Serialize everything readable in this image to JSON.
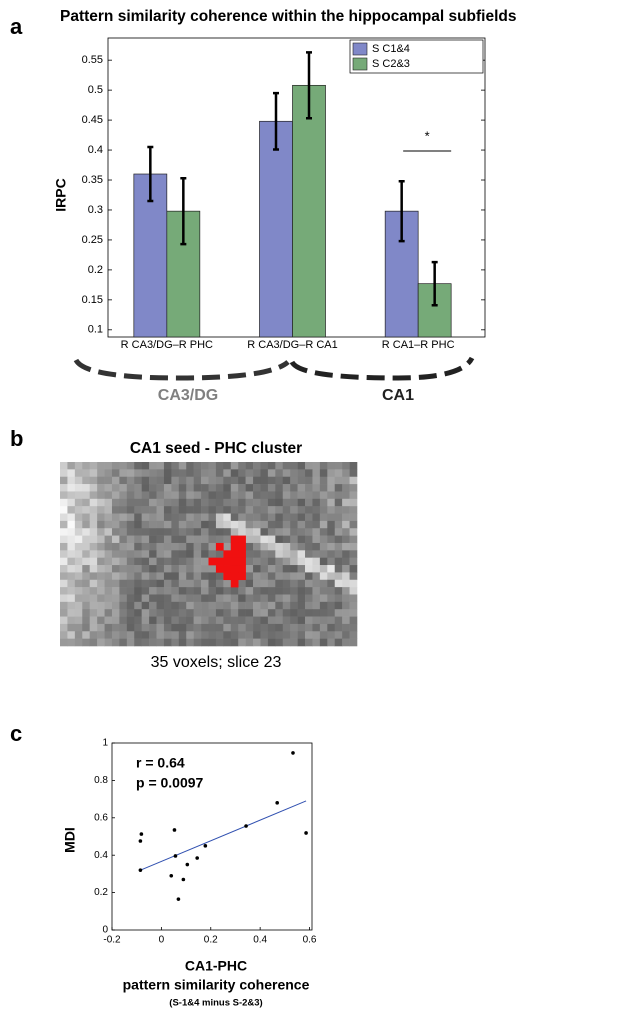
{
  "chart_data": [
    {
      "type": "bar",
      "panel_label": "a",
      "title": "Pattern  similarity coherence within the hippocampal subfields",
      "y_label": "IRPC",
      "categories": [
        "R CA3/DG–R PHC",
        "R CA3/DG–R CA1",
        "R CA1–R PHC"
      ],
      "series": [
        {
          "name": "S C1&4",
          "color": "#8088c8",
          "values": [
            0.36,
            0.448,
            0.298
          ],
          "errors": [
            0.045,
            0.047,
            0.05
          ]
        },
        {
          "name": "S C2&3",
          "color": "#76aa78",
          "values": [
            0.298,
            0.508,
            0.177
          ],
          "errors": [
            0.055,
            0.055,
            0.036
          ]
        }
      ],
      "ylim": [
        0.088,
        0.587
      ],
      "yticks": [
        0.1,
        0.15,
        0.2,
        0.25,
        0.3,
        0.35,
        0.4,
        0.45,
        0.5,
        0.55
      ],
      "legend": "top-right",
      "significance": {
        "label": "*",
        "category": "R CA1–R PHC"
      },
      "groups": [
        {
          "label": "CA3/DG",
          "color": "#808080"
        },
        {
          "label": "CA1",
          "color": "#222222"
        }
      ]
    },
    {
      "type": "image",
      "panel_label": "b",
      "title": "CA1 seed - PHC cluster",
      "caption": "35 voxels; slice 23"
    },
    {
      "type": "scatter",
      "panel_label": "c",
      "y_label": "MDI",
      "x_label": [
        "CA1-PHC",
        "pattern similarity coherence"
      ],
      "x_sublabel": "(S-1&4  minus  S-2&3)",
      "annotations": [
        "r = 0.64",
        "p = 0.0097"
      ],
      "x": [
        -0.085,
        -0.081,
        -0.085,
        0.053,
        0.057,
        0.04,
        0.069,
        0.089,
        0.105,
        0.145,
        0.178,
        0.343,
        0.469,
        0.533,
        0.586
      ],
      "y": [
        0.476,
        0.513,
        0.32,
        0.535,
        0.396,
        0.29,
        0.165,
        0.27,
        0.35,
        0.385,
        0.45,
        0.556,
        0.68,
        0.947,
        0.519
      ],
      "color": "#000000",
      "fit_line": {
        "x": [
          -0.085,
          0.586
        ],
        "y": [
          0.32,
          0.69
        ],
        "color": "#3050b0"
      },
      "xlim": [
        -0.2,
        0.61
      ],
      "ylim": [
        0,
        1
      ],
      "xticks": [
        -0.2,
        0,
        0.2,
        0.4,
        0.6
      ],
      "yticks": [
        0,
        0.2,
        0.4,
        0.6,
        0.8,
        1
      ]
    }
  ]
}
